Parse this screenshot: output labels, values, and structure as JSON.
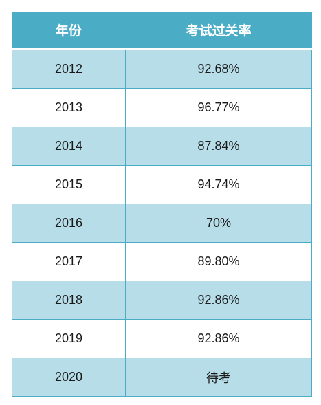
{
  "table": {
    "headers": {
      "year": "年份",
      "rate": "考试过关率"
    },
    "rows": [
      {
        "year": "2012",
        "rate": "92.68%"
      },
      {
        "year": "2013",
        "rate": "96.77%"
      },
      {
        "year": "2014",
        "rate": "87.84%"
      },
      {
        "year": "2015",
        "rate": "94.74%"
      },
      {
        "year": "2016",
        "rate": "70%"
      },
      {
        "year": "2017",
        "rate": "89.80%"
      },
      {
        "year": "2018",
        "rate": "92.86%"
      },
      {
        "year": "2019",
        "rate": "92.86%"
      },
      {
        "year": "2020",
        "rate": "待考"
      }
    ],
    "colors": {
      "header_bg": "#4bacc6",
      "band_bg": "#b7dde8",
      "plain_bg": "#ffffff",
      "grid_line": "#4bacc6"
    }
  }
}
